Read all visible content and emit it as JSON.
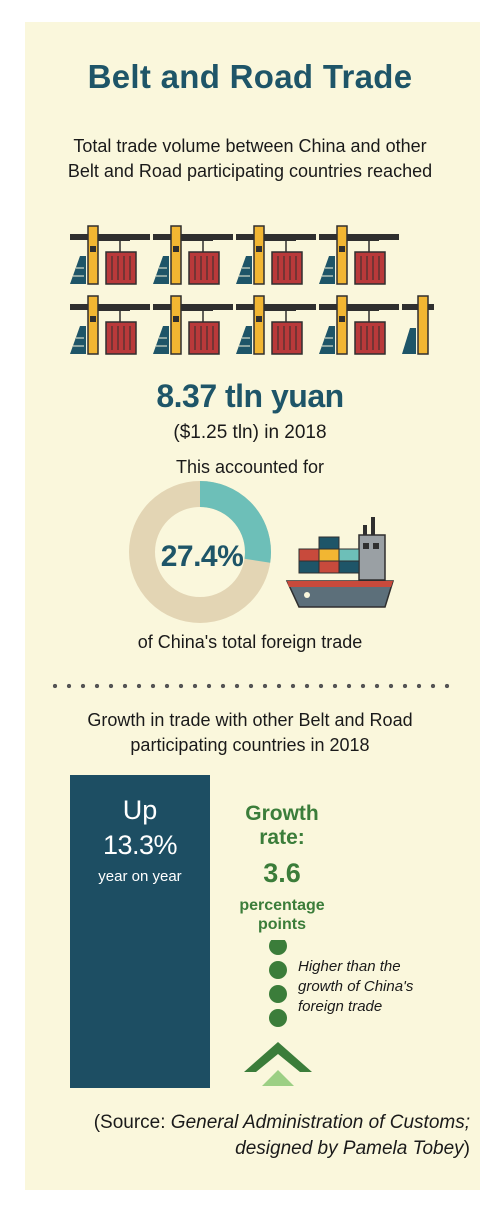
{
  "title": "Belt and Road Trade",
  "intro": "Total trade volume between China and other Belt and Road participating countries reached",
  "trade": {
    "amount": "8.37 tln yuan",
    "usd_year": "($1.25 tln) in 2018",
    "accounted_label": "This accounted for",
    "share_percent_text": "27.4%",
    "share_value": 27.4,
    "share_suffix": "of China's total foreign trade"
  },
  "growth": {
    "heading": "Growth in trade with other Belt and Road participating countries in 2018",
    "up_label": "Up",
    "up_percent": "13.3%",
    "up_sub": "year on year",
    "rate_label": "Growth rate:",
    "rate_value": "3.6",
    "rate_unit": "percentage points",
    "note": "Higher than the growth of China's foreign trade"
  },
  "source": {
    "prefix": "(Source: ",
    "italic": "General Administration of Customs; designed by Pamela Tobey",
    "suffix": ")"
  },
  "colors": {
    "background": "#faf7dc",
    "navy": "#1e5568",
    "teal": "#6dbfb8",
    "tan": "#e3d5b4",
    "green": "#3b7d3a"
  }
}
